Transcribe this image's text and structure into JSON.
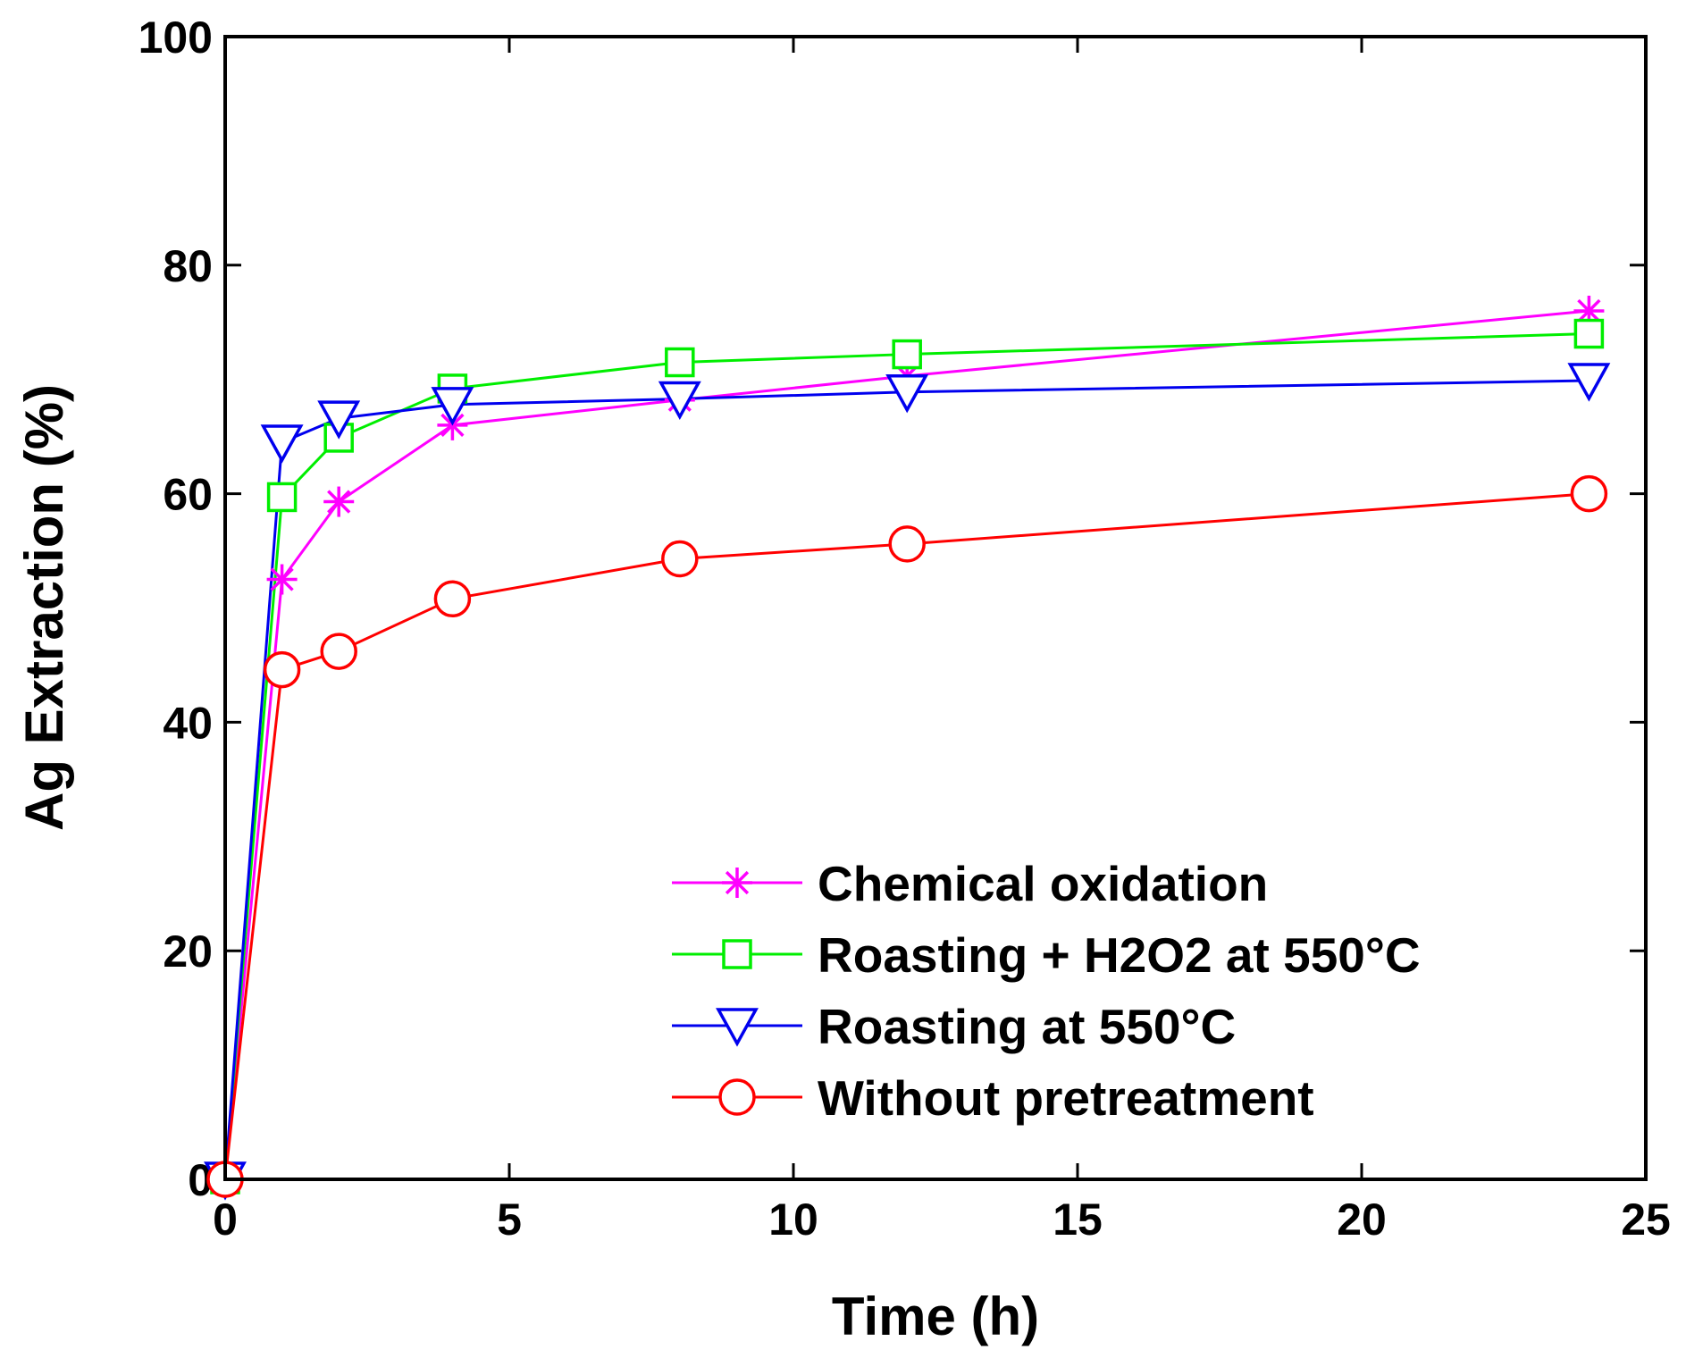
{
  "chart_data": {
    "type": "line",
    "title": "",
    "xlabel": "Time (h)",
    "ylabel": "Ag Extraction (%)",
    "xlim": [
      0,
      25
    ],
    "ylim": [
      0,
      100
    ],
    "xticks": [
      0,
      5,
      10,
      15,
      20,
      25
    ],
    "yticks": [
      0,
      20,
      40,
      60,
      80,
      100
    ],
    "grid": false,
    "legend_position": "bottom-right",
    "x": [
      0,
      1,
      2,
      4,
      8,
      12,
      24
    ],
    "series": [
      {
        "name": "Chemical oxidation",
        "color": "#ff00ff",
        "marker": "asterisk",
        "values": [
          0,
          52.5,
          59.3,
          66,
          68.2,
          70.3,
          76
        ]
      },
      {
        "name": "Roasting + H2O2 at 550°C",
        "color": "#00ee00",
        "marker": "square",
        "values": [
          0,
          59.7,
          64.9,
          69.2,
          71.5,
          72.2,
          74
        ]
      },
      {
        "name": "Roasting at 550°C",
        "color": "#0000ee",
        "marker": "triangle-down",
        "values": [
          0,
          64.5,
          66.6,
          67.8,
          68.3,
          68.9,
          69.9
        ]
      },
      {
        "name": "Without pretreatment",
        "color": "#ff0000",
        "marker": "circle",
        "values": [
          0,
          44.6,
          46.2,
          50.8,
          54.3,
          55.6,
          60
        ]
      }
    ]
  }
}
